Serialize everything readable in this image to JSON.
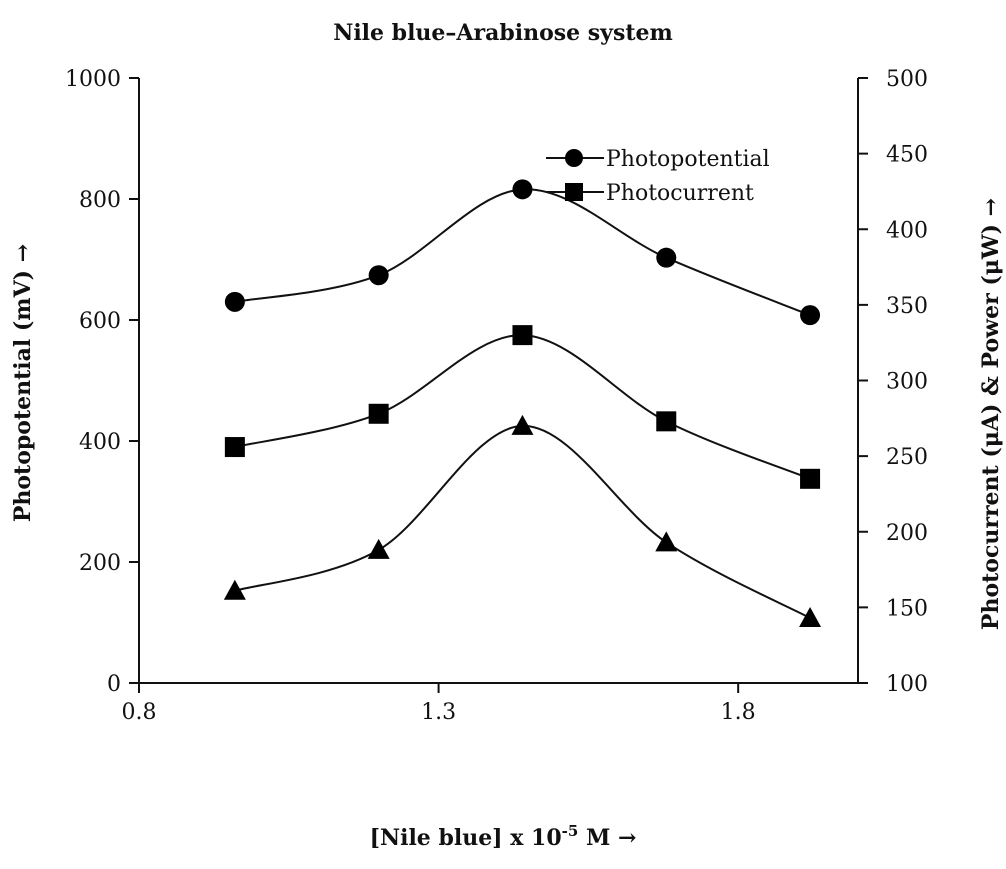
{
  "chart_data": {
    "type": "line",
    "title": "Nile blue–Arabinose system",
    "xlabel": "[Nile blue] x 10",
    "xlabel_sup": "-5",
    "xlabel_tail": " M →",
    "ylabel": "Photopotential (mV) →",
    "y2label": "Photocurrent (μA) & Power (μW) →",
    "x": [
      0.96,
      1.2,
      1.44,
      1.68,
      1.92
    ],
    "xlim": [
      0.8,
      2.0
    ],
    "ylim": [
      0,
      1000
    ],
    "y2lim": [
      100,
      500
    ],
    "x_ticks": [
      "0.8",
      "1.3",
      "1.8"
    ],
    "y_ticks": [
      "0",
      "200",
      "400",
      "600",
      "800",
      "1000"
    ],
    "y2_ticks": [
      "100",
      "150",
      "200",
      "250",
      "300",
      "350",
      "400",
      "450",
      "500"
    ],
    "series": [
      {
        "name": "Photopotential",
        "axis": "left",
        "marker": "circle",
        "values": [
          630,
          674,
          816,
          703,
          608
        ]
      },
      {
        "name": "Photocurrent",
        "axis": "right",
        "marker": "square",
        "values": [
          256,
          278,
          330,
          273,
          235
        ]
      },
      {
        "name": "",
        "axis": "right",
        "marker": "triangle",
        "values": [
          161,
          188,
          270,
          193,
          143
        ]
      }
    ],
    "legend_position": "top-right",
    "grid": false
  }
}
